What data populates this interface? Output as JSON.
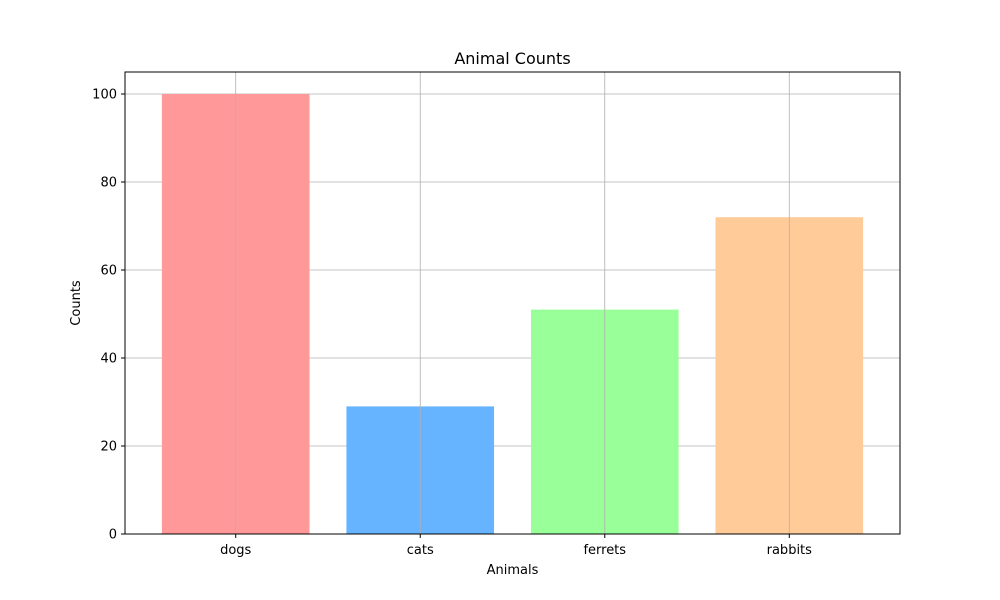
{
  "chart_data": {
    "type": "bar",
    "title": "Animal Counts",
    "xlabel": "Animals",
    "ylabel": "Counts",
    "categories": [
      "dogs",
      "cats",
      "ferrets",
      "rabbits"
    ],
    "values": [
      100,
      29,
      51,
      72
    ],
    "colors": [
      "#ff9999",
      "#66b3ff",
      "#99ff99",
      "#ffcc99"
    ],
    "ylim": [
      0,
      105
    ],
    "yticks": [
      0,
      20,
      40,
      60,
      80,
      100
    ],
    "grid": true,
    "legend": "none"
  }
}
